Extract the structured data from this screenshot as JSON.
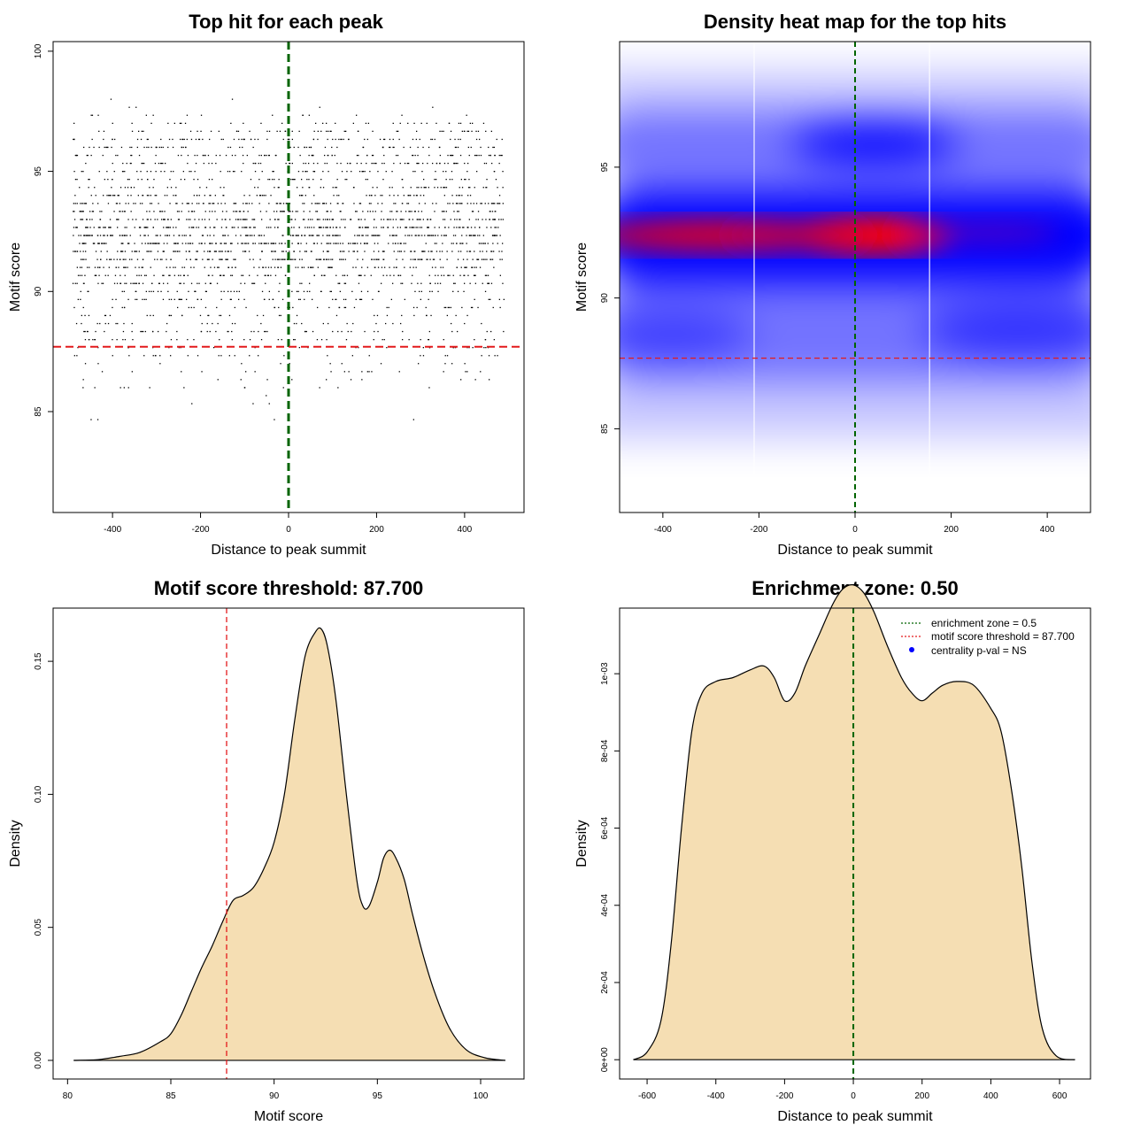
{
  "chart_data": [
    {
      "type": "scatter",
      "title": "Top hit for each peak",
      "xlabel": "Distance to peak summit",
      "ylabel": "Motif score",
      "xlim": [
        -535,
        535
      ],
      "ylim": [
        80.8,
        100.4
      ],
      "xticks": [
        -400,
        -200,
        0,
        200,
        400
      ],
      "yticks": [
        85,
        90,
        95,
        100
      ],
      "vline": {
        "x": 0,
        "color": "#006400",
        "style": "dashed"
      },
      "hline": {
        "y": 87.7,
        "color": "#e31a1c",
        "style": "dashed"
      },
      "point_count": 2600,
      "x_range": [
        -490,
        490
      ],
      "score_modes": [
        {
          "center": 92.3,
          "sd": 1.25,
          "weight": 0.62
        },
        {
          "center": 95.8,
          "sd": 0.85,
          "weight": 0.2
        },
        {
          "center": 89.0,
          "sd": 1.7,
          "weight": 0.18
        }
      ]
    },
    {
      "type": "heatmap",
      "title": "Density heat map for the top hits",
      "xlabel": "Distance to peak summit",
      "ylabel": "Motif score",
      "xlim": [
        -490,
        490
      ],
      "ylim": [
        81.8,
        99.8
      ],
      "xticks": [
        -400,
        -200,
        0,
        200,
        400
      ],
      "yticks": [
        85,
        90,
        95
      ],
      "vline": {
        "x": 0,
        "color": "#006400",
        "style": "dashed"
      },
      "hline": {
        "y": 87.7,
        "color": "#e31a1c",
        "style": "dashed"
      },
      "white_vlines_x": [
        -210,
        155
      ],
      "colors": [
        "#ffffff",
        "#0000ff",
        "#ff0000"
      ],
      "hotspots": [
        {
          "x": 30,
          "y": 92.4,
          "label": "central red hotspot"
        },
        {
          "x": -270,
          "y": 92.4,
          "label": "left red band"
        },
        {
          "x": 40,
          "y": 95.9,
          "label": "upper blue spot"
        }
      ]
    },
    {
      "type": "area",
      "title": "Motif score threshold: 87.700",
      "xlabel": "Motif score",
      "ylabel": "Density",
      "xlim": [
        79.3,
        102.1
      ],
      "ylim": [
        -0.007,
        0.17
      ],
      "xticks": [
        80,
        85,
        90,
        95,
        100
      ],
      "yticks": [
        0.0,
        0.05,
        0.1,
        0.15
      ],
      "ytick_labels": [
        "0.00",
        "0.05",
        "0.10",
        "0.15"
      ],
      "vline": {
        "x": 87.7,
        "color": "#e31a1c",
        "style": "dashed"
      },
      "fill": "#f5deb3",
      "x": [
        80.3,
        81.5,
        82.5,
        83.5,
        84.5,
        85.0,
        85.5,
        86.0,
        86.5,
        87.0,
        87.5,
        88.0,
        88.5,
        89.0,
        89.5,
        90.0,
        90.5,
        91.0,
        91.5,
        92.0,
        92.3,
        92.6,
        93.0,
        93.5,
        94.0,
        94.3,
        94.6,
        95.0,
        95.3,
        95.6,
        95.9,
        96.3,
        96.7,
        97.2,
        97.8,
        98.5,
        99.3,
        100.2,
        101.2
      ],
      "values": [
        0.0,
        0.0003,
        0.0015,
        0.003,
        0.007,
        0.01,
        0.017,
        0.026,
        0.035,
        0.043,
        0.052,
        0.06,
        0.062,
        0.065,
        0.072,
        0.082,
        0.1,
        0.128,
        0.152,
        0.161,
        0.162,
        0.155,
        0.135,
        0.1,
        0.068,
        0.058,
        0.058,
        0.067,
        0.076,
        0.079,
        0.076,
        0.068,
        0.055,
        0.04,
        0.025,
        0.012,
        0.004,
        0.001,
        0.0
      ]
    },
    {
      "type": "area",
      "title": "Enrichment zone: 0.50",
      "xlabel": "Distance to peak summit",
      "ylabel": "Density",
      "xlim": [
        -680,
        690
      ],
      "ylim": [
        -5e-05,
        0.00117
      ],
      "xticks": [
        -600,
        -400,
        -200,
        0,
        200,
        400,
        600
      ],
      "yticks": [
        0,
        0.0002,
        0.0004,
        0.0006,
        0.0008,
        0.001
      ],
      "ytick_labels": [
        "0e+00",
        "2e-04",
        "4e-04",
        "6e-04",
        "8e-04",
        "1e-03"
      ],
      "vline": {
        "x": 0,
        "color": "#006400",
        "style": "dashed"
      },
      "fill": "#f5deb3",
      "x": [
        -640,
        -600,
        -560,
        -530,
        -500,
        -470,
        -440,
        -400,
        -350,
        -300,
        -260,
        -230,
        -200,
        -170,
        -140,
        -100,
        -60,
        -30,
        0,
        30,
        60,
        100,
        140,
        170,
        200,
        230,
        260,
        300,
        350,
        400,
        430,
        460,
        490,
        520,
        550,
        590,
        645
      ],
      "values": [
        0.0,
        2e-05,
        0.0001,
        0.0003,
        0.0006,
        0.00085,
        0.00095,
        0.00098,
        0.00099,
        0.00101,
        0.00102,
        0.00099,
        0.00093,
        0.00095,
        0.00102,
        0.0011,
        0.00118,
        0.00122,
        0.00123,
        0.00121,
        0.00116,
        0.00107,
        0.00099,
        0.00095,
        0.00093,
        0.00095,
        0.00097,
        0.00098,
        0.00097,
        0.00091,
        0.00085,
        0.0007,
        0.0005,
        0.00025,
        8e-05,
        1e-05,
        0.0
      ],
      "legend": {
        "entries": [
          {
            "label": "enrichment zone = 0.5",
            "color": "#006400",
            "kind": "line"
          },
          {
            "label": "motif score threshold = 87.700",
            "color": "#e31a1c",
            "kind": "line"
          },
          {
            "label": "centrality p-val = NS",
            "color": "#0000ff",
            "kind": "point"
          }
        ]
      }
    }
  ]
}
